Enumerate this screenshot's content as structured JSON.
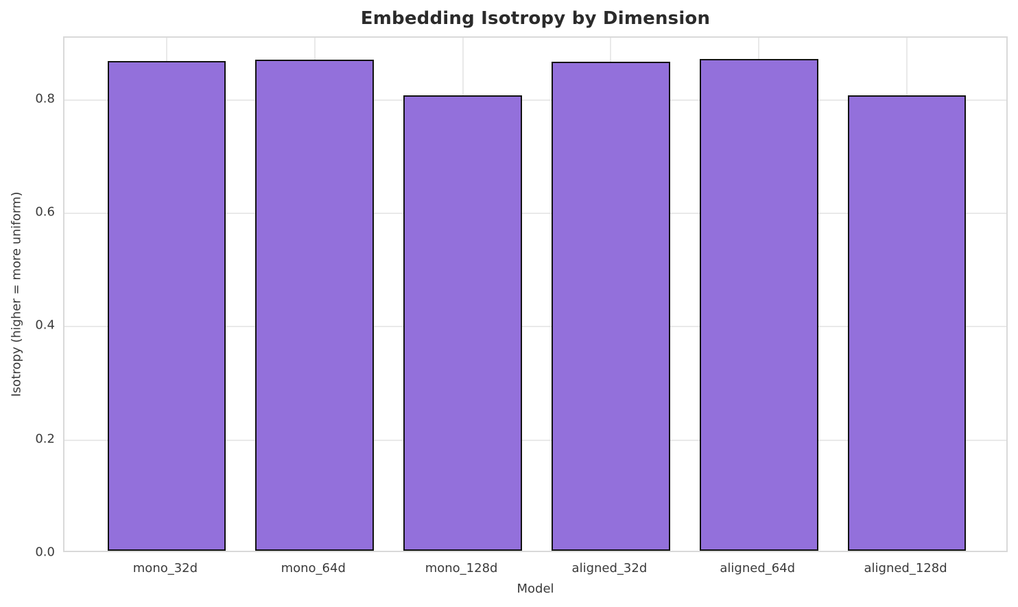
{
  "chart_data": {
    "type": "bar",
    "title": "Embedding Isotropy by Dimension",
    "xlabel": "Model",
    "ylabel": "Isotropy (higher = more uniform)",
    "categories": [
      "mono_32d",
      "mono_64d",
      "mono_128d",
      "aligned_32d",
      "aligned_64d",
      "aligned_128d"
    ],
    "values": [
      0.864,
      0.867,
      0.803,
      0.863,
      0.868,
      0.803
    ],
    "yticks": [
      "0.0",
      "0.2",
      "0.4",
      "0.6",
      "0.8"
    ],
    "ylim": [
      0,
      0.91
    ],
    "xlim": [
      -0.69,
      5.69
    ],
    "bar_width": 0.8,
    "bar_color": "#9370DB",
    "bar_edge_color": "#111111",
    "grid": true,
    "grid_color": "#e9e9e9",
    "spine_color": "#d9d9d9",
    "background": "#ffffff",
    "legend_position": "none"
  }
}
